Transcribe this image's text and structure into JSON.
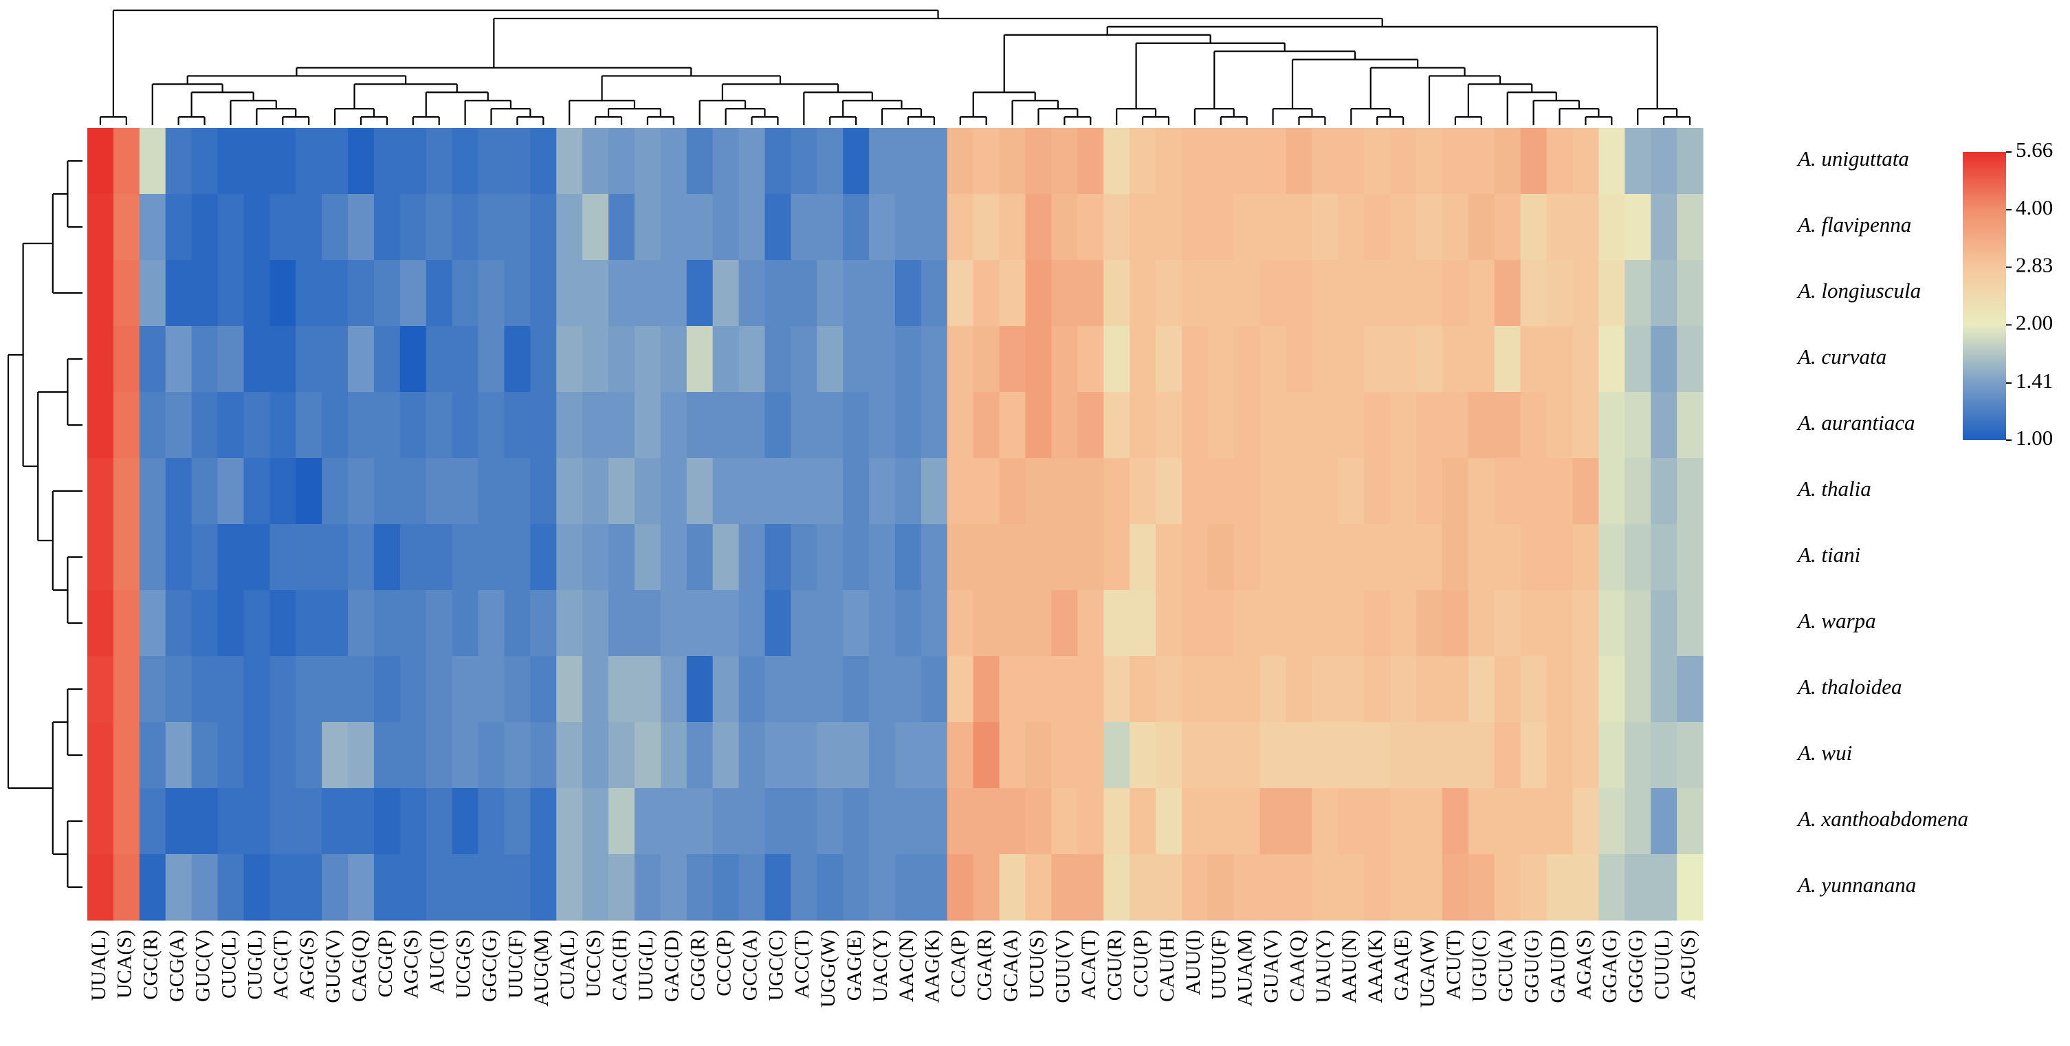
{
  "chart_data": {
    "type": "heatmap",
    "x": [
      "UUA(L)",
      "UCA(S)",
      "CGC(R)",
      "GCG(A)",
      "GUC(V)",
      "CUC(L)",
      "CUG(L)",
      "ACG(T)",
      "AGG(S)",
      "GUG(V)",
      "CAG(Q)",
      "CCG(P)",
      "AGC(S)",
      "AUC(I)",
      "UCG(S)",
      "GGC(G)",
      "UUC(F)",
      "AUG(M)",
      "CUA(L)",
      "UCC(S)",
      "CAC(H)",
      "UUG(L)",
      "GAC(D)",
      "CGG(R)",
      "CCC(P)",
      "GCC(A)",
      "UGC(C)",
      "ACC(T)",
      "UGG(W)",
      "GAG(E)",
      "UAC(Y)",
      "AAC(N)",
      "AAG(K)",
      "CCA(P)",
      "CGA(R)",
      "GCA(A)",
      "UCU(S)",
      "GUU(V)",
      "ACA(T)",
      "CGU(R)",
      "CCU(P)",
      "CAU(H)",
      "AUU(I)",
      "UUU(F)",
      "AUA(M)",
      "GUA(V)",
      "CAA(Q)",
      "UAU(Y)",
      "AAU(N)",
      "AAA(K)",
      "GAA(E)",
      "UGA(W)",
      "ACU(T)",
      "UGU(C)",
      "GCU(A)",
      "GGU(G)",
      "GAU(D)",
      "AGA(S)",
      "GGA(G)",
      "GGG(G)",
      "CUU(L)",
      "AGU(S)"
    ],
    "y": [
      "A. uniguttata",
      "A. flavipenna",
      "A. longiuscula",
      "A. curvata",
      "A. aurantiaca",
      "A. thalia",
      "A. tiani",
      "A. warpa",
      "A. thaloidea",
      "A. wui",
      "A. xanthoabdomena",
      "A. yunnanana"
    ],
    "values": [
      [
        5.6,
        4.4,
        1.85,
        1.15,
        1.1,
        1.05,
        1.05,
        1.05,
        1.1,
        1.1,
        1.02,
        1.1,
        1.1,
        1.15,
        1.1,
        1.15,
        1.15,
        1.1,
        1.55,
        1.4,
        1.35,
        1.4,
        1.35,
        1.2,
        1.3,
        1.35,
        1.15,
        1.2,
        1.25,
        1.05,
        1.3,
        1.3,
        1.3,
        3.1,
        3.0,
        3.1,
        3.3,
        3.2,
        3.4,
        2.4,
        2.8,
        2.9,
        3.0,
        3.0,
        3.0,
        3.0,
        3.2,
        3.0,
        3.0,
        2.9,
        3.0,
        2.9,
        3.0,
        3.0,
        3.1,
        3.5,
        3.0,
        2.9,
        2.1,
        1.55,
        1.5,
        1.6
      ],
      [
        5.5,
        4.3,
        1.35,
        1.1,
        1.05,
        1.1,
        1.05,
        1.1,
        1.1,
        1.2,
        1.3,
        1.1,
        1.15,
        1.2,
        1.15,
        1.2,
        1.2,
        1.15,
        1.45,
        1.65,
        1.2,
        1.4,
        1.35,
        1.35,
        1.3,
        1.35,
        1.1,
        1.3,
        1.3,
        1.2,
        1.35,
        1.3,
        1.3,
        2.9,
        2.7,
        2.9,
        3.5,
        3.1,
        3.0,
        2.7,
        2.9,
        2.9,
        3.0,
        3.0,
        2.9,
        2.9,
        2.9,
        2.8,
        2.9,
        3.0,
        2.9,
        2.8,
        2.9,
        3.1,
        3.0,
        2.5,
        2.8,
        2.8,
        2.2,
        2.1,
        1.55,
        1.8
      ],
      [
        5.5,
        4.4,
        1.4,
        1.05,
        1.05,
        1.1,
        1.05,
        1.0,
        1.1,
        1.1,
        1.15,
        1.2,
        1.3,
        1.1,
        1.2,
        1.25,
        1.2,
        1.15,
        1.45,
        1.45,
        1.35,
        1.35,
        1.35,
        1.1,
        1.5,
        1.3,
        1.25,
        1.25,
        1.35,
        1.3,
        1.3,
        1.15,
        1.25,
        2.6,
        3.0,
        2.8,
        3.6,
        3.3,
        3.3,
        2.5,
        2.9,
        2.8,
        2.9,
        2.9,
        2.9,
        3.0,
        3.0,
        2.9,
        2.9,
        2.9,
        2.9,
        2.9,
        3.0,
        2.9,
        3.3,
        2.6,
        2.7,
        2.8,
        2.3,
        1.75,
        1.6,
        1.75
      ],
      [
        5.5,
        4.5,
        1.15,
        1.35,
        1.2,
        1.25,
        1.05,
        1.05,
        1.15,
        1.15,
        1.35,
        1.15,
        1.0,
        1.15,
        1.15,
        1.25,
        1.05,
        1.15,
        1.5,
        1.45,
        1.4,
        1.45,
        1.4,
        1.8,
        1.4,
        1.45,
        1.25,
        1.3,
        1.45,
        1.3,
        1.3,
        1.25,
        1.3,
        3.0,
        3.1,
        3.5,
        3.6,
        3.2,
        3.0,
        2.2,
        2.9,
        2.6,
        3.0,
        2.9,
        3.0,
        2.9,
        3.0,
        2.9,
        2.9,
        2.8,
        2.8,
        2.7,
        2.9,
        2.9,
        2.3,
        2.9,
        2.9,
        2.8,
        2.1,
        1.7,
        1.45,
        1.7
      ],
      [
        5.5,
        4.4,
        1.2,
        1.25,
        1.15,
        1.1,
        1.15,
        1.1,
        1.2,
        1.15,
        1.2,
        1.2,
        1.15,
        1.2,
        1.15,
        1.2,
        1.15,
        1.15,
        1.4,
        1.35,
        1.35,
        1.45,
        1.35,
        1.3,
        1.3,
        1.3,
        1.2,
        1.3,
        1.3,
        1.25,
        1.3,
        1.25,
        1.3,
        3.0,
        3.3,
        3.0,
        3.6,
        3.2,
        3.4,
        2.6,
        2.9,
        2.8,
        3.0,
        2.9,
        3.0,
        2.9,
        2.9,
        2.9,
        2.9,
        3.0,
        2.9,
        3.0,
        3.0,
        3.2,
        3.2,
        3.0,
        2.9,
        2.8,
        1.9,
        1.85,
        1.5,
        1.85
      ],
      [
        5.3,
        4.3,
        1.25,
        1.1,
        1.2,
        1.3,
        1.1,
        1.05,
        1.0,
        1.2,
        1.25,
        1.2,
        1.2,
        1.25,
        1.25,
        1.2,
        1.2,
        1.15,
        1.45,
        1.4,
        1.5,
        1.4,
        1.35,
        1.5,
        1.35,
        1.35,
        1.35,
        1.35,
        1.35,
        1.25,
        1.35,
        1.3,
        1.45,
        3.0,
        3.0,
        3.2,
        3.1,
        3.1,
        3.1,
        3.0,
        2.8,
        2.6,
        3.0,
        3.0,
        3.0,
        2.9,
        2.9,
        2.9,
        2.8,
        3.0,
        2.9,
        3.0,
        3.1,
        2.9,
        3.0,
        3.0,
        3.0,
        3.2,
        1.9,
        1.8,
        1.6,
        1.75
      ],
      [
        5.3,
        4.3,
        1.25,
        1.1,
        1.15,
        1.05,
        1.05,
        1.15,
        1.15,
        1.15,
        1.2,
        1.05,
        1.15,
        1.15,
        1.2,
        1.2,
        1.2,
        1.1,
        1.4,
        1.35,
        1.3,
        1.45,
        1.35,
        1.25,
        1.5,
        1.3,
        1.15,
        1.25,
        1.3,
        1.25,
        1.3,
        1.2,
        1.3,
        3.1,
        3.1,
        3.1,
        3.1,
        3.1,
        3.1,
        3.0,
        2.4,
        2.9,
        3.0,
        3.1,
        3.0,
        2.9,
        2.9,
        2.9,
        2.9,
        2.9,
        2.9,
        2.9,
        3.1,
        2.9,
        2.9,
        3.0,
        3.0,
        2.9,
        1.85,
        1.75,
        1.65,
        1.75
      ],
      [
        5.4,
        4.4,
        1.35,
        1.15,
        1.1,
        1.05,
        1.1,
        1.05,
        1.1,
        1.1,
        1.25,
        1.2,
        1.2,
        1.25,
        1.2,
        1.3,
        1.2,
        1.25,
        1.45,
        1.4,
        1.3,
        1.3,
        1.35,
        1.35,
        1.35,
        1.3,
        1.1,
        1.3,
        1.3,
        1.35,
        1.3,
        1.25,
        1.3,
        3.0,
        3.1,
        3.1,
        3.1,
        3.4,
        3.0,
        2.3,
        2.3,
        2.9,
        3.0,
        3.0,
        2.9,
        2.9,
        2.9,
        2.9,
        2.9,
        3.0,
        2.9,
        3.1,
        3.2,
        2.9,
        2.8,
        2.9,
        2.9,
        2.8,
        1.9,
        1.8,
        1.6,
        1.75
      ],
      [
        5.2,
        4.4,
        1.25,
        1.2,
        1.15,
        1.15,
        1.1,
        1.15,
        1.2,
        1.2,
        1.2,
        1.15,
        1.2,
        1.25,
        1.3,
        1.3,
        1.25,
        1.2,
        1.6,
        1.4,
        1.55,
        1.55,
        1.4,
        1.05,
        1.4,
        1.25,
        1.3,
        1.3,
        1.3,
        1.25,
        1.3,
        1.3,
        1.25,
        2.8,
        3.6,
        3.0,
        3.0,
        3.0,
        3.0,
        2.6,
        2.9,
        2.8,
        2.9,
        2.9,
        2.9,
        2.7,
        2.9,
        2.8,
        2.8,
        2.9,
        2.8,
        2.9,
        2.9,
        2.6,
        2.9,
        2.7,
        2.9,
        2.8,
        1.95,
        1.8,
        1.6,
        1.5
      ],
      [
        5.3,
        4.4,
        1.2,
        1.4,
        1.2,
        1.15,
        1.1,
        1.15,
        1.2,
        1.55,
        1.5,
        1.2,
        1.2,
        1.25,
        1.3,
        1.25,
        1.3,
        1.25,
        1.5,
        1.4,
        1.5,
        1.6,
        1.45,
        1.3,
        1.45,
        1.3,
        1.35,
        1.35,
        1.4,
        1.4,
        1.3,
        1.35,
        1.35,
        3.2,
        4.0,
        3.0,
        3.1,
        3.0,
        3.0,
        1.8,
        2.4,
        2.5,
        2.8,
        2.8,
        2.8,
        2.6,
        2.6,
        2.6,
        2.6,
        2.6,
        2.7,
        2.7,
        2.7,
        2.7,
        3.0,
        2.6,
        2.9,
        2.8,
        1.9,
        1.75,
        1.7,
        1.75
      ],
      [
        5.3,
        4.4,
        1.15,
        1.05,
        1.05,
        1.1,
        1.1,
        1.15,
        1.15,
        1.1,
        1.1,
        1.05,
        1.1,
        1.15,
        1.05,
        1.15,
        1.2,
        1.1,
        1.55,
        1.45,
        1.7,
        1.35,
        1.35,
        1.35,
        1.3,
        1.3,
        1.25,
        1.25,
        1.3,
        1.25,
        1.3,
        1.3,
        1.3,
        3.3,
        3.3,
        3.3,
        3.2,
        2.9,
        3.0,
        2.4,
        2.9,
        2.3,
        2.9,
        2.9,
        2.9,
        3.3,
        3.3,
        2.9,
        3.0,
        3.0,
        2.9,
        2.9,
        3.4,
        2.9,
        2.9,
        2.9,
        2.9,
        2.6,
        1.85,
        1.75,
        1.4,
        1.8
      ],
      [
        5.4,
        4.5,
        1.05,
        1.4,
        1.3,
        1.15,
        1.05,
        1.1,
        1.1,
        1.25,
        1.35,
        1.1,
        1.1,
        1.15,
        1.15,
        1.15,
        1.15,
        1.1,
        1.55,
        1.45,
        1.5,
        1.3,
        1.35,
        1.25,
        1.2,
        1.25,
        1.1,
        1.25,
        1.2,
        1.25,
        1.3,
        1.25,
        1.25,
        3.6,
        3.3,
        2.5,
        2.9,
        3.3,
        3.3,
        2.3,
        2.7,
        2.7,
        3.0,
        3.1,
        3.0,
        3.0,
        3.0,
        2.9,
        2.9,
        3.0,
        2.9,
        2.9,
        3.3,
        3.2,
        2.9,
        2.8,
        2.5,
        2.5,
        1.75,
        1.65,
        1.65,
        2.0
      ]
    ],
    "zlim": [
      1,
      5.66
    ],
    "log_scale": true,
    "colors": [
      "#1d5fc1",
      "#7b9fc7",
      "#e9ecbf",
      "#f6c79c",
      "#f08f6b",
      "#e8302a"
    ],
    "colorbar_ticks": [
      5.66,
      {
        "value": 4,
        "label": "4.00"
      },
      2.83,
      {
        "value": 2,
        "label": "2.00"
      },
      1.41,
      {
        "value": 1,
        "label": "1.00"
      }
    ]
  }
}
